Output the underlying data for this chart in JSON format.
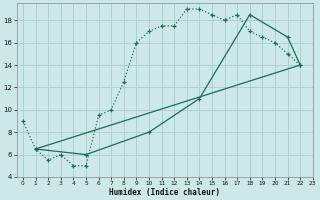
{
  "title": "",
  "xlabel": "Humidex (Indice chaleur)",
  "xlim": [
    -0.5,
    23
  ],
  "ylim": [
    4,
    19.5
  ],
  "yticks": [
    4,
    6,
    8,
    10,
    12,
    14,
    16,
    18
  ],
  "xticks": [
    0,
    1,
    2,
    3,
    4,
    5,
    6,
    7,
    8,
    9,
    10,
    11,
    12,
    13,
    14,
    15,
    16,
    17,
    18,
    19,
    20,
    21,
    22,
    23
  ],
  "bg_color": "#cce9e7",
  "grid_color": "#aaccca",
  "line_color": "#1a6b60",
  "line1_x": [
    0,
    1,
    2,
    3,
    4,
    5,
    6,
    7,
    8,
    9,
    10,
    11,
    12,
    13,
    14,
    15,
    16,
    17,
    18,
    19,
    20,
    21,
    22
  ],
  "line1_y": [
    9,
    6.5,
    5.5,
    6.0,
    5.0,
    5.0,
    9.5,
    10.0,
    12.5,
    16.0,
    17.0,
    17.5,
    17.5,
    19.0,
    19.0,
    18.5,
    18.0,
    18.5,
    17.0,
    16.5,
    16.0,
    15.0,
    14.0
  ],
  "line2_x": [
    1,
    5,
    10,
    14,
    18,
    21,
    22
  ],
  "line2_y": [
    6.5,
    6.0,
    8.0,
    11.0,
    18.5,
    16.5,
    14.0
  ],
  "line3_x": [
    1,
    22
  ],
  "line3_y": [
    6.5,
    14.0
  ]
}
